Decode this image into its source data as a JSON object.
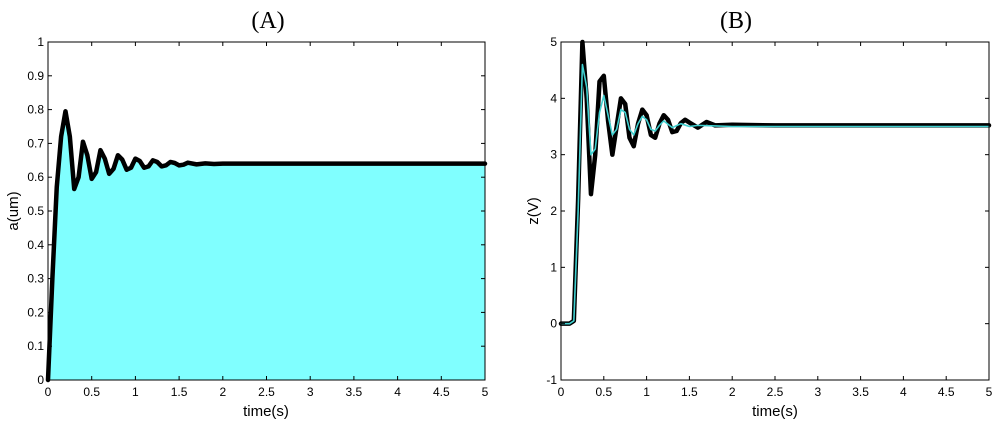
{
  "colors": {
    "fill": "#80ffff",
    "response": "#000000",
    "overlay": "#40d0d0"
  },
  "chart_data": [
    {
      "type": "area",
      "title": "(A)",
      "xlabel": "time(s)",
      "ylabel": "a(um)",
      "xlim": [
        0,
        5
      ],
      "ylim": [
        0,
        1
      ],
      "grid": false,
      "xticks": [
        "0",
        "0.5",
        "1",
        "1.5",
        "2",
        "2.5",
        "3",
        "3.5",
        "4",
        "4.5",
        "5"
      ],
      "yticks": [
        "0",
        "0.1",
        "0.2",
        "0.3",
        "0.4",
        "0.5",
        "0.6",
        "0.7",
        "0.8",
        "0.9",
        "1"
      ],
      "series": [
        {
          "style": "thick black line over cyan filled area",
          "x": [
            0,
            0.05,
            0.1,
            0.15,
            0.2,
            0.25,
            0.3,
            0.35,
            0.4,
            0.45,
            0.5,
            0.55,
            0.6,
            0.65,
            0.7,
            0.75,
            0.8,
            0.85,
            0.9,
            0.95,
            1.0,
            1.05,
            1.1,
            1.15,
            1.2,
            1.25,
            1.3,
            1.35,
            1.4,
            1.45,
            1.5,
            1.55,
            1.6,
            1.7,
            1.8,
            1.9,
            2.0,
            2.2,
            2.5,
            3.0,
            3.5,
            4.0,
            4.5,
            5.0
          ],
          "y": [
            0,
            0.3,
            0.57,
            0.72,
            0.795,
            0.72,
            0.565,
            0.6,
            0.705,
            0.665,
            0.595,
            0.615,
            0.68,
            0.655,
            0.61,
            0.625,
            0.665,
            0.652,
            0.622,
            0.628,
            0.655,
            0.648,
            0.628,
            0.632,
            0.65,
            0.645,
            0.632,
            0.635,
            0.645,
            0.642,
            0.635,
            0.637,
            0.643,
            0.638,
            0.641,
            0.639,
            0.64,
            0.64,
            0.64,
            0.64,
            0.64,
            0.64,
            0.64,
            0.64
          ]
        }
      ]
    },
    {
      "type": "line",
      "title": "(B)",
      "xlabel": "time(s)",
      "ylabel": "z(V)",
      "xlim": [
        0,
        5
      ],
      "ylim": [
        -1,
        5
      ],
      "grid": false,
      "xticks": [
        "0",
        "0.5",
        "1",
        "1.5",
        "2",
        "2.5",
        "3",
        "3.5",
        "4",
        "4.5",
        "5"
      ],
      "yticks": [
        "-1",
        "0",
        "1",
        "2",
        "3",
        "4",
        "5"
      ],
      "series": [
        {
          "style": "thick black line",
          "x": [
            0,
            0.1,
            0.15,
            0.2,
            0.25,
            0.3,
            0.35,
            0.4,
            0.45,
            0.5,
            0.55,
            0.6,
            0.65,
            0.7,
            0.75,
            0.8,
            0.85,
            0.9,
            0.95,
            1.0,
            1.05,
            1.1,
            1.15,
            1.2,
            1.25,
            1.3,
            1.35,
            1.4,
            1.45,
            1.5,
            1.6,
            1.7,
            1.8,
            2.0,
            2.5,
            3.0,
            4.0,
            5.0
          ],
          "y": [
            0,
            0,
            0.05,
            2.2,
            5.0,
            4.0,
            2.3,
            3.0,
            4.3,
            4.4,
            3.6,
            3.0,
            3.5,
            4.0,
            3.9,
            3.3,
            3.15,
            3.55,
            3.8,
            3.7,
            3.35,
            3.3,
            3.55,
            3.7,
            3.62,
            3.4,
            3.42,
            3.56,
            3.62,
            3.57,
            3.48,
            3.58,
            3.52,
            3.53,
            3.52,
            3.52,
            3.52,
            3.52
          ]
        },
        {
          "style": "thin cyan line",
          "x": [
            0,
            0.1,
            0.15,
            0.2,
            0.25,
            0.3,
            0.35,
            0.4,
            0.45,
            0.5,
            0.55,
            0.6,
            0.65,
            0.7,
            0.75,
            0.8,
            0.85,
            0.9,
            0.95,
            1.0,
            1.05,
            1.1,
            1.15,
            1.2,
            1.3,
            1.4,
            1.5,
            1.6,
            1.8,
            2.0,
            2.5,
            3.0,
            4.0,
            5.0
          ],
          "y": [
            0,
            0,
            0.05,
            2.0,
            4.6,
            4.2,
            3.0,
            3.1,
            3.75,
            4.05,
            3.7,
            3.35,
            3.45,
            3.8,
            3.75,
            3.45,
            3.35,
            3.55,
            3.68,
            3.62,
            3.45,
            3.42,
            3.52,
            3.6,
            3.48,
            3.55,
            3.5,
            3.52,
            3.51,
            3.5,
            3.5,
            3.5,
            3.5,
            3.5
          ]
        }
      ]
    }
  ]
}
